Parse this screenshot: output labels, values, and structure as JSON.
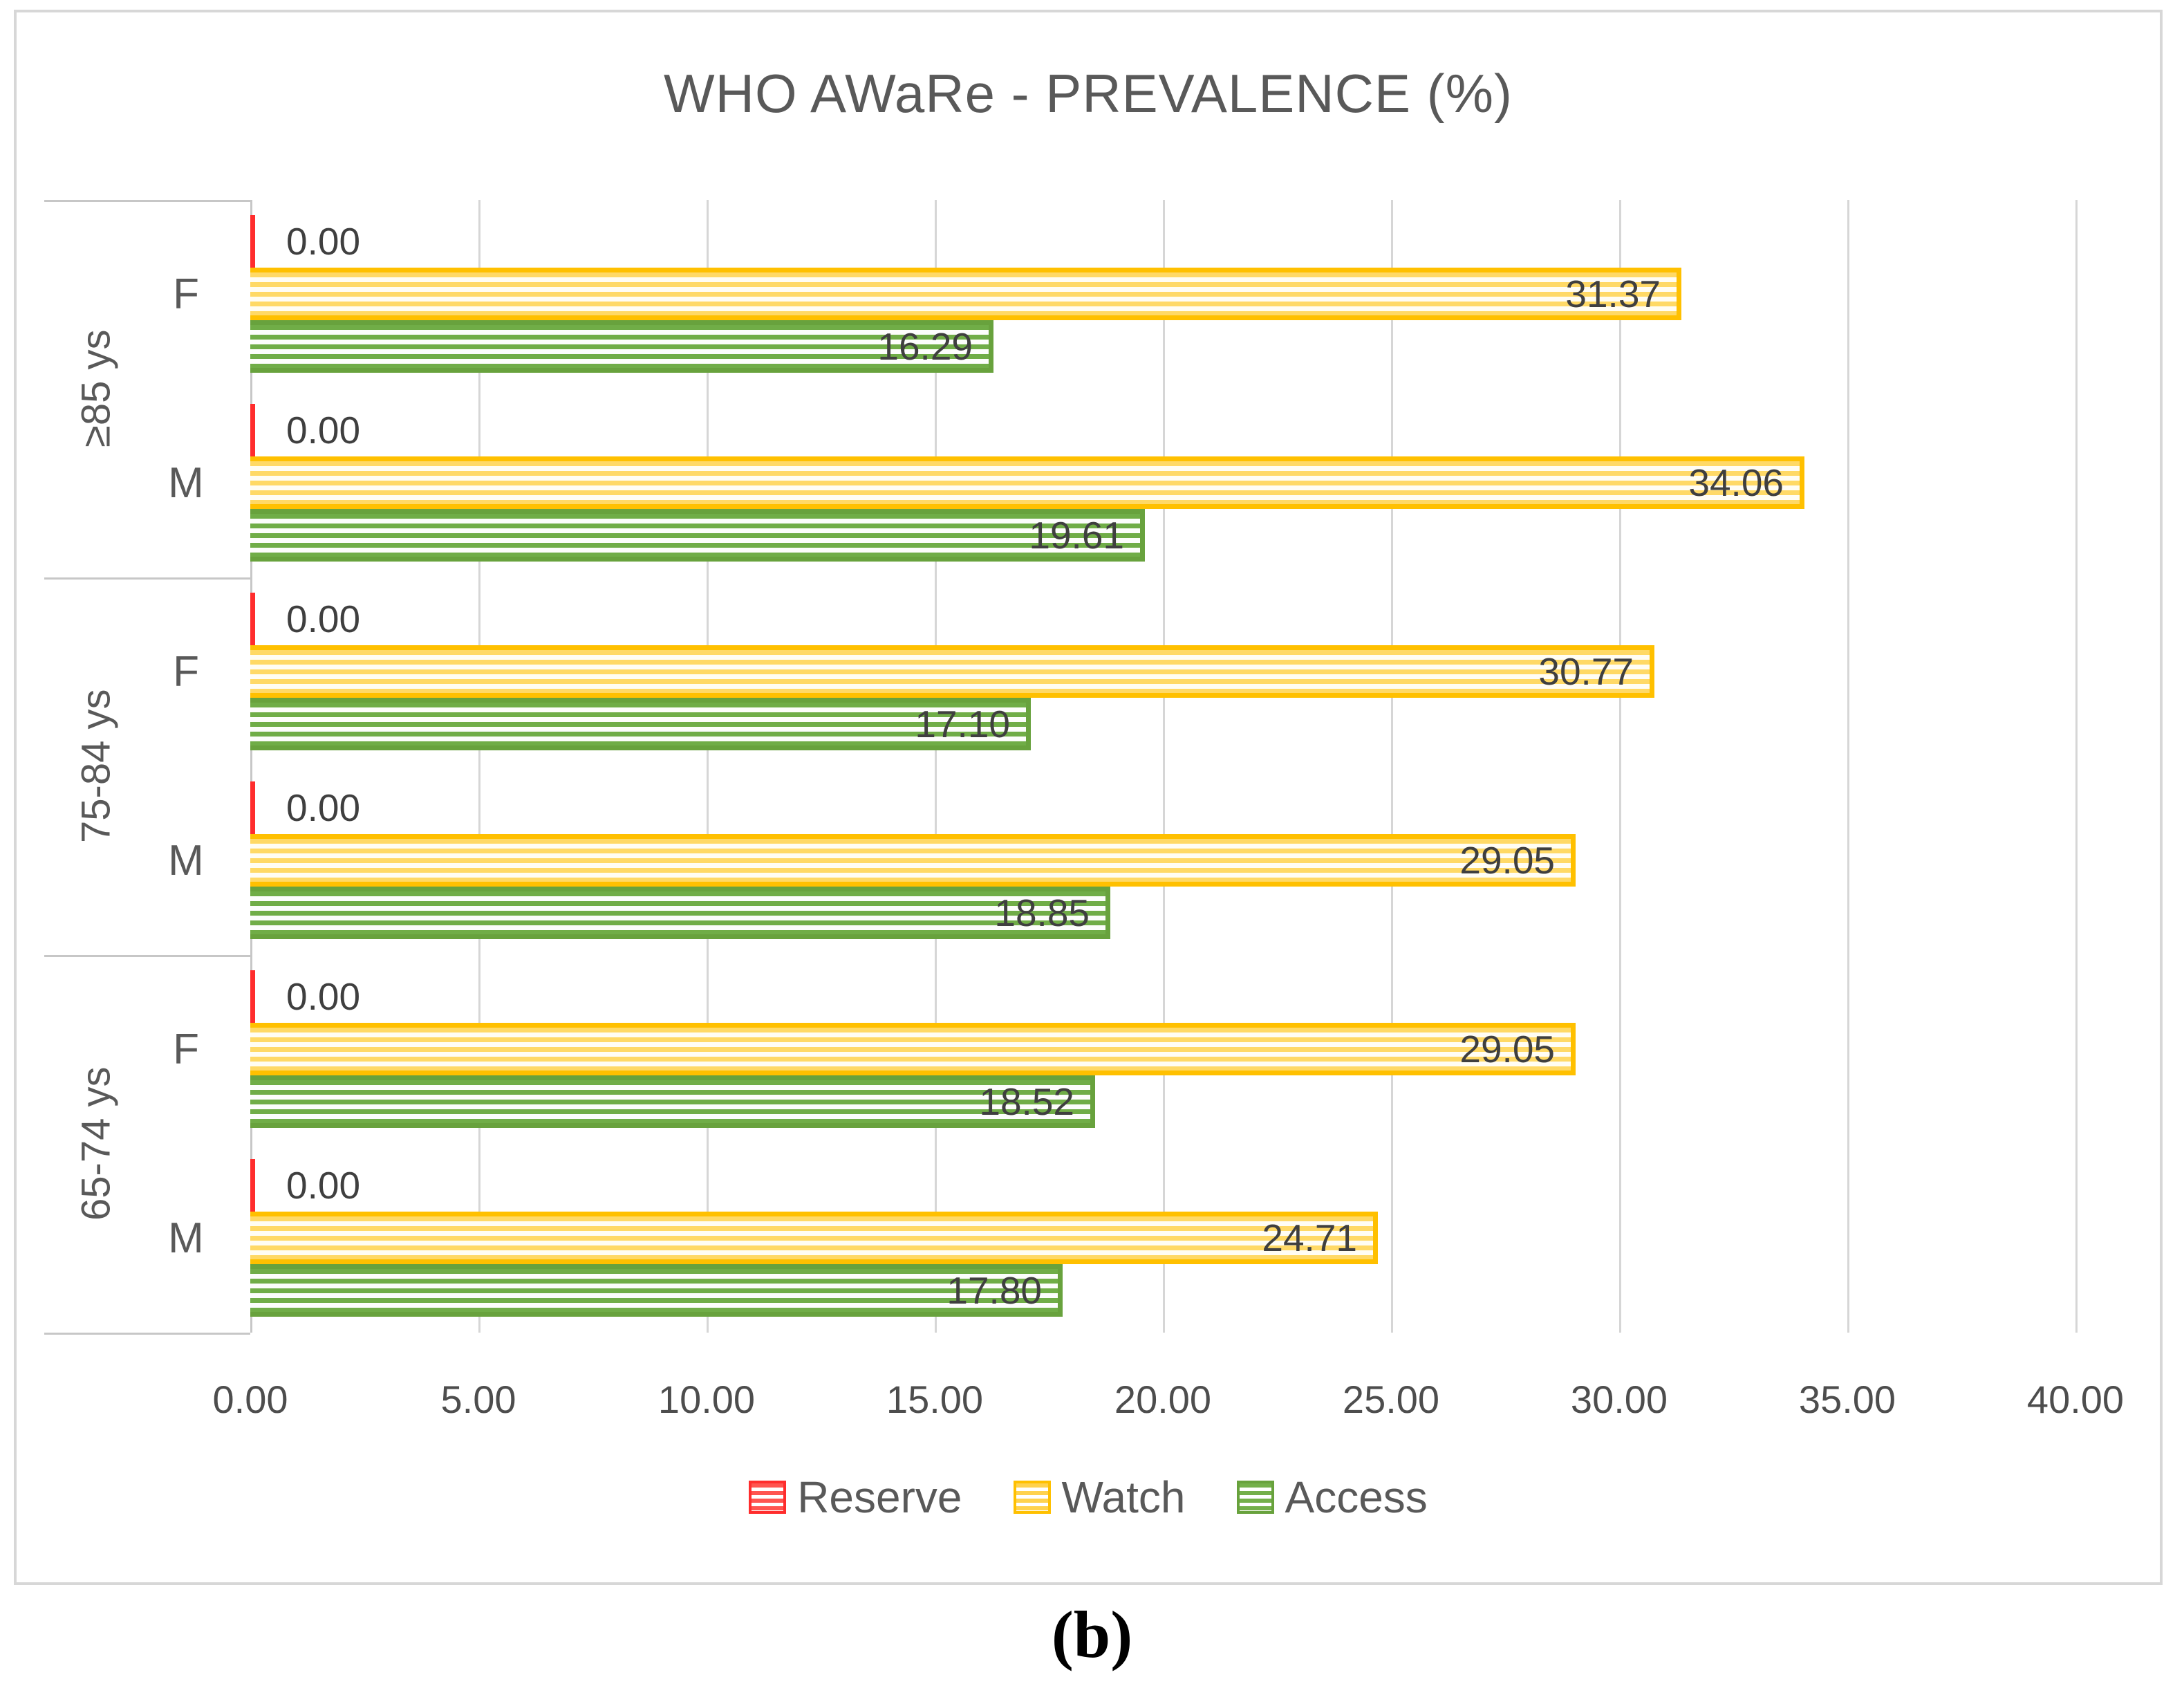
{
  "figure": {
    "caption": "(b)"
  },
  "chart_data": {
    "type": "bar",
    "orientation": "horizontal",
    "title": "WHO AWaRe - PREVALENCE (%)",
    "xlabel": "",
    "ylabel": "",
    "xlim": [
      0,
      40
    ],
    "x_tick_step": 5,
    "x_ticks": [
      "0.00",
      "5.00",
      "10.00",
      "15.00",
      "20.00",
      "25.00",
      "30.00",
      "35.00",
      "40.00"
    ],
    "grid": true,
    "legend_position": "bottom",
    "series_meta": [
      {
        "name": "Reserve",
        "key": "reserve",
        "border_color": "#ff2d2d",
        "stripe_color": "#ff5550"
      },
      {
        "name": "Watch",
        "key": "watch",
        "border_color": "#ffc000",
        "stripe_color": "#ffd966"
      },
      {
        "name": "Access",
        "key": "access",
        "border_color": "#68a23d",
        "stripe_color": "#70ad47"
      }
    ],
    "groups": [
      {
        "age_label": "≥85 ys",
        "rows": [
          {
            "sex": "F",
            "values": {
              "reserve": 0.0,
              "watch": 31.37,
              "access": 16.29
            },
            "labels": {
              "reserve": "0.00",
              "watch": "31.37",
              "access": "16.29"
            }
          },
          {
            "sex": "M",
            "values": {
              "reserve": 0.0,
              "watch": 34.06,
              "access": 19.61
            },
            "labels": {
              "reserve": "0.00",
              "watch": "34.06",
              "access": "19.61"
            }
          }
        ]
      },
      {
        "age_label": "75-84 ys",
        "rows": [
          {
            "sex": "F",
            "values": {
              "reserve": 0.0,
              "watch": 30.77,
              "access": 17.1
            },
            "labels": {
              "reserve": "0.00",
              "watch": "30.77",
              "access": "17.10"
            }
          },
          {
            "sex": "M",
            "values": {
              "reserve": 0.0,
              "watch": 29.05,
              "access": 18.85
            },
            "labels": {
              "reserve": "0.00",
              "watch": "29.05",
              "access": "18.85"
            }
          }
        ]
      },
      {
        "age_label": "65-74 ys",
        "rows": [
          {
            "sex": "F",
            "values": {
              "reserve": 0.0,
              "watch": 29.05,
              "access": 18.52
            },
            "labels": {
              "reserve": "0.00",
              "watch": "29.05",
              "access": "18.52"
            }
          },
          {
            "sex": "M",
            "values": {
              "reserve": 0.0,
              "watch": 24.71,
              "access": 17.8
            },
            "labels": {
              "reserve": "0.00",
              "watch": "24.71",
              "access": "17.80"
            }
          }
        ]
      }
    ],
    "legend": [
      "Reserve",
      "Watch",
      "Access"
    ]
  }
}
